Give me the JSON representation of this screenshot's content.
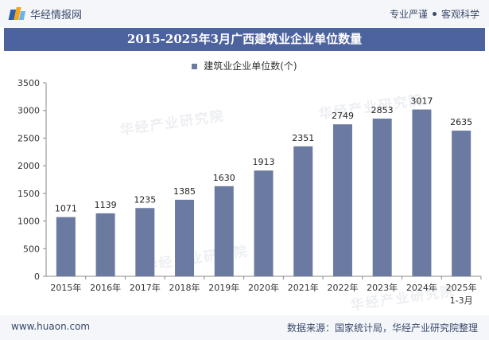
{
  "header": {
    "brand": "华经情报网",
    "right_left": "专业严谨",
    "right_right": "客观科学"
  },
  "footer": {
    "website": "www.huaon.com",
    "source": "数据来源：国家统计局，华经产业研究院整理"
  },
  "watermark": "华经产业研究院",
  "chart_data": {
    "type": "bar",
    "title": "2015-2025年3月广西建筑业企业单位数量",
    "categories": [
      "2015年",
      "2016年",
      "2017年",
      "2018年",
      "2019年",
      "2020年",
      "2021年",
      "2022年",
      "2023年",
      "2024年",
      "2025年1-3月"
    ],
    "series": [
      {
        "name": "建筑业企业单位数(个)",
        "values": [
          1071,
          1139,
          1235,
          1385,
          1630,
          1913,
          2351,
          2749,
          2853,
          3017,
          2635
        ]
      }
    ],
    "ylim": [
      0,
      3500
    ],
    "yticks": [
      0,
      500,
      1000,
      1500,
      2000,
      2500,
      3000,
      3500
    ],
    "xlabel": "",
    "ylabel": "",
    "grid": false,
    "legend_position": "top-center",
    "colors": {
      "bar": "#6b7aa1",
      "title_bg": "#4d63a0"
    }
  }
}
